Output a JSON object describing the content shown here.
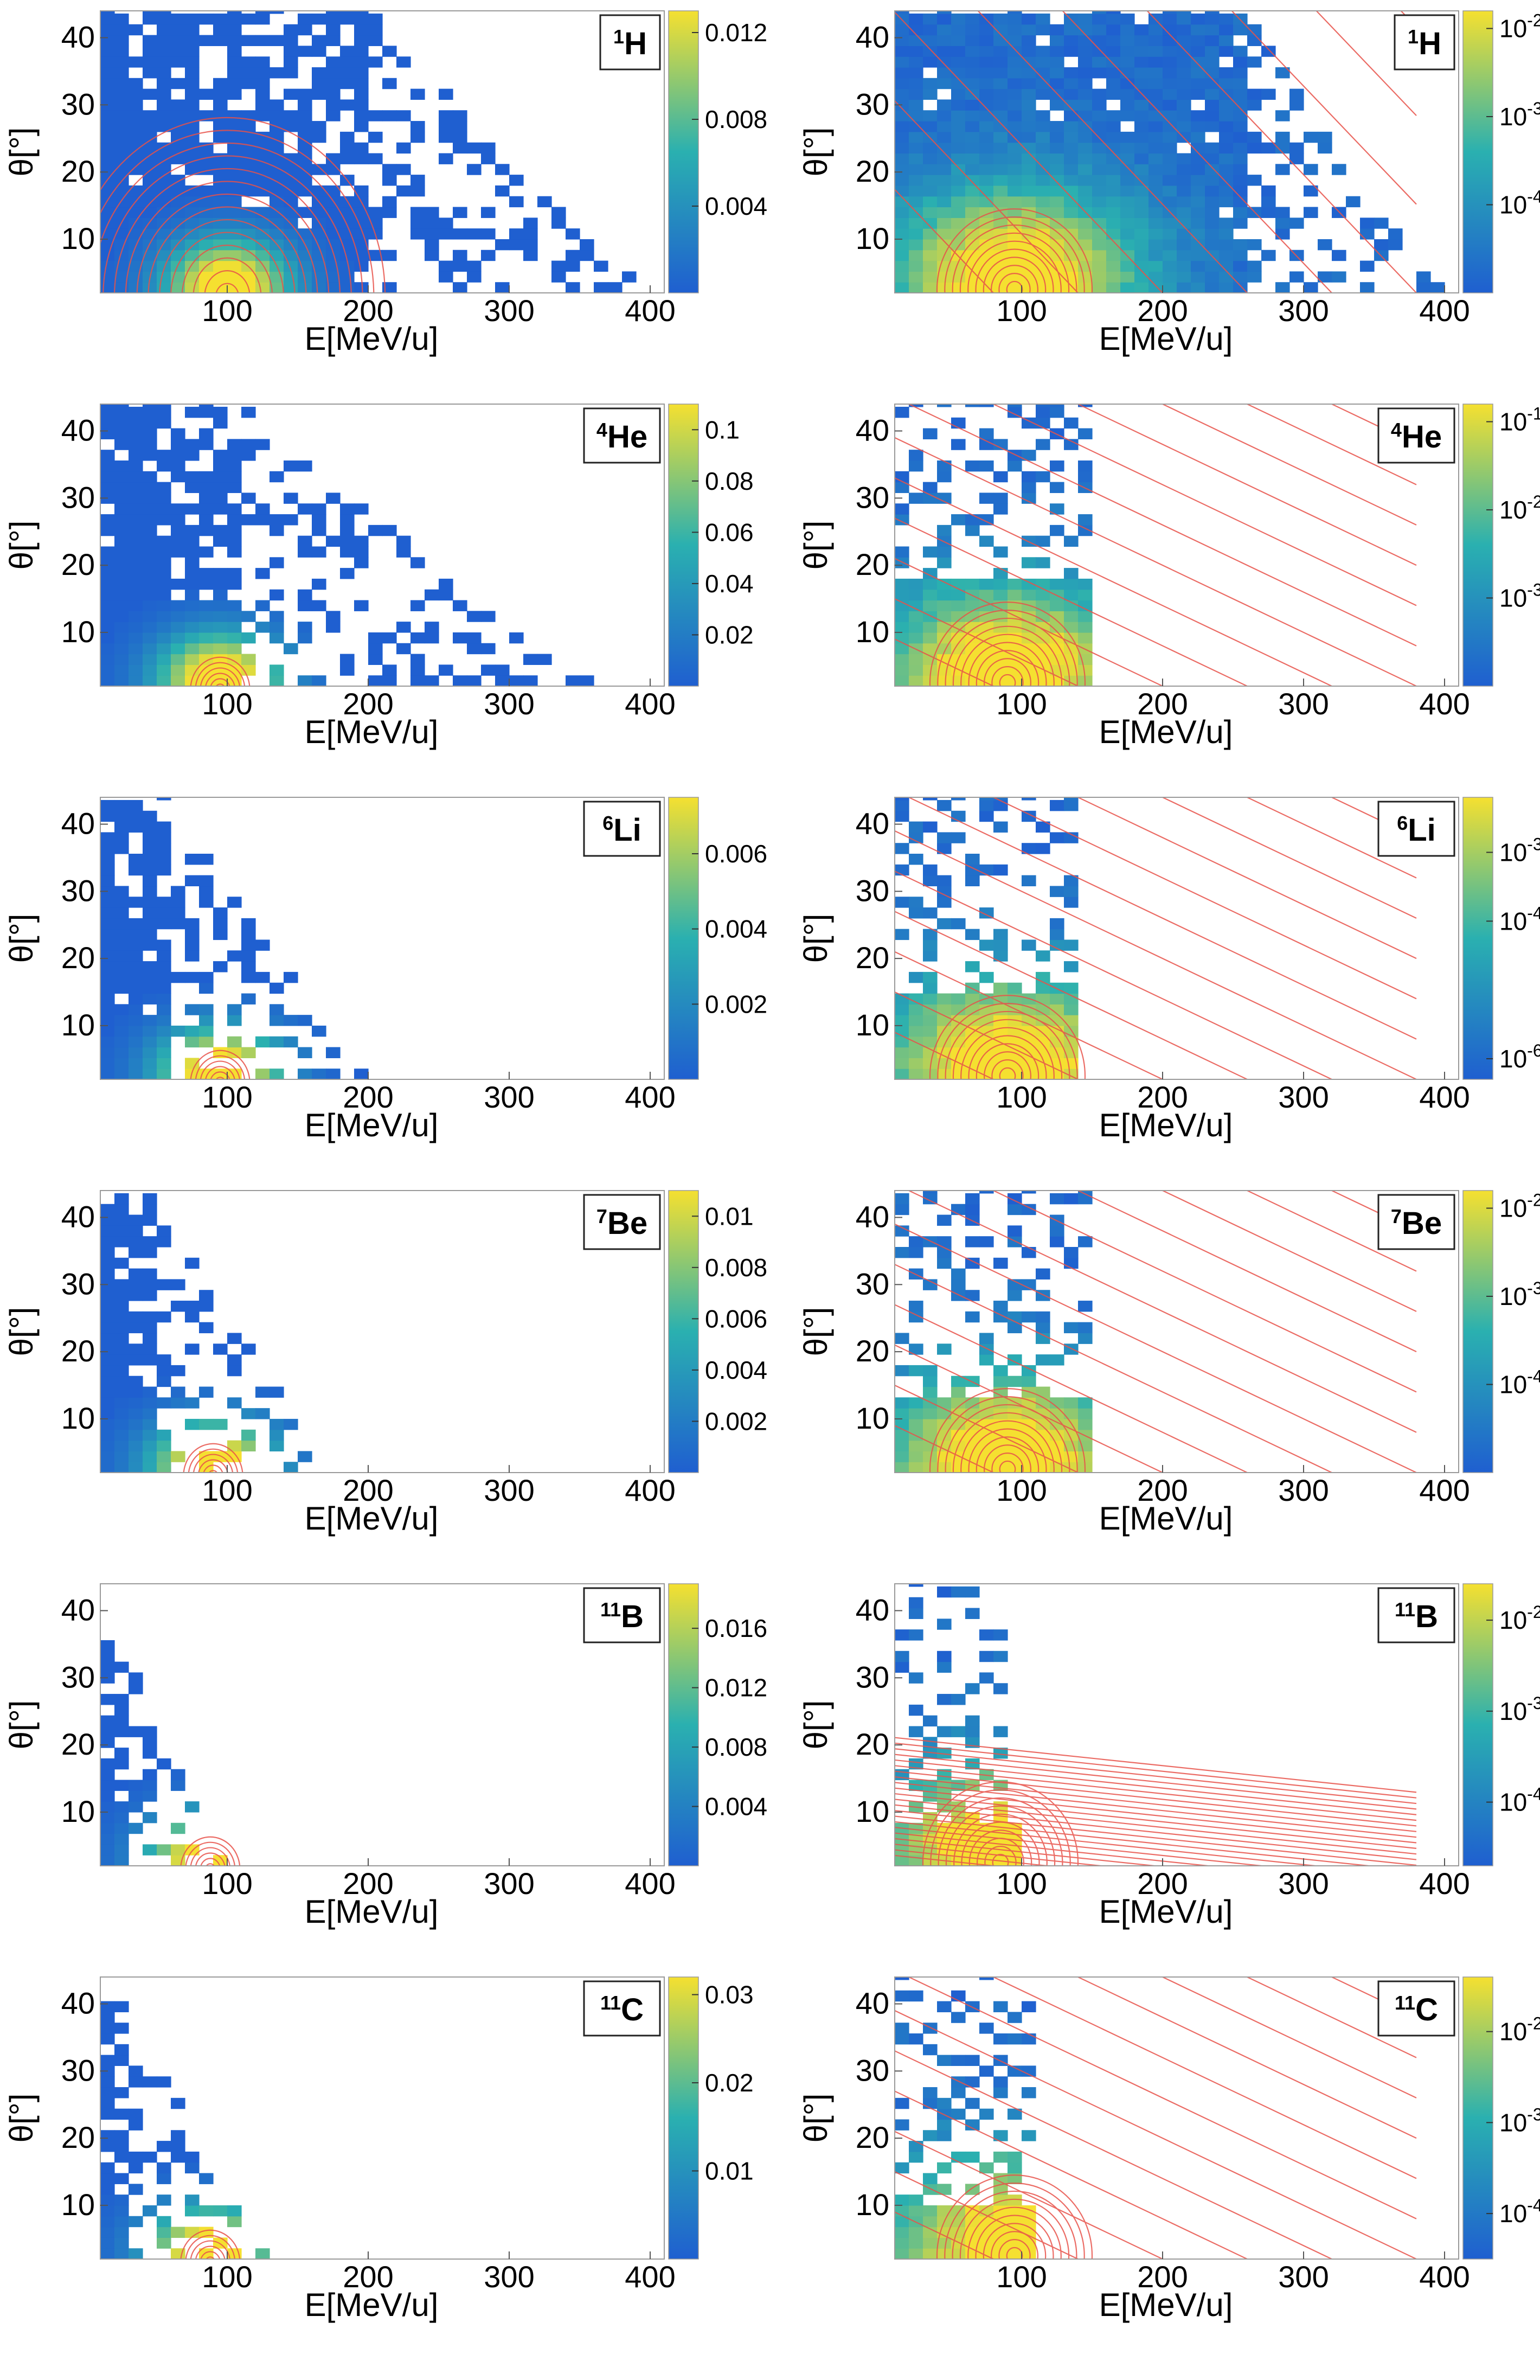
{
  "colors": {
    "cell_low": "#1f5fd0",
    "cell_mid": "#2ab0b0",
    "cell_high": "#f5e030",
    "contour": "#e8524a",
    "frame": "#9a9a9a"
  },
  "chart_data": [
    {
      "type": "heatmap",
      "id": "h1-linear",
      "scale": "linear",
      "isotope": {
        "mass": "1",
        "symbol": "H"
      },
      "xlabel": "E[MeV/u]",
      "ylabel": "θ[°]",
      "xlim": [
        10,
        410
      ],
      "ylim": [
        2,
        44
      ],
      "x_ticks": [
        "100",
        "200",
        "300",
        "400"
      ],
      "x_tick_values": [
        100,
        200,
        300,
        400
      ],
      "y_ticks": [
        "10",
        "20",
        "30",
        "40"
      ],
      "y_tick_values": [
        10,
        20,
        30,
        40
      ],
      "colorbar": {
        "ticks": [
          "0.004",
          "0.008",
          "0.012"
        ],
        "tick_values": [
          0.004,
          0.008,
          0.012
        ],
        "max": 0.013
      },
      "peak": {
        "E": 100,
        "theta": 3
      },
      "filled_region": {
        "E_max": 200,
        "theta_max": 44,
        "sparse_to_E": 400
      },
      "contour_style": "rings"
    },
    {
      "type": "heatmap",
      "id": "h1-log",
      "scale": "log",
      "isotope": {
        "mass": "1",
        "symbol": "H"
      },
      "xlabel": "E[MeV/u]",
      "ylabel": "θ[°]",
      "xlim": [
        10,
        410
      ],
      "ylim": [
        2,
        44
      ],
      "x_ticks": [
        "100",
        "200",
        "300",
        "400"
      ],
      "x_tick_values": [
        100,
        200,
        300,
        400
      ],
      "y_ticks": [
        "10",
        "20",
        "30",
        "40"
      ],
      "y_tick_values": [
        10,
        20,
        30,
        40
      ],
      "colorbar": {
        "ticks": [
          {
            "base": "10",
            "exp": "-2"
          },
          {
            "base": "10",
            "exp": "-3"
          },
          {
            "base": "10",
            "exp": "-4"
          }
        ],
        "tick_values": [
          -2,
          -3,
          -4
        ],
        "log_range": [
          -5,
          -1.8
        ]
      },
      "peak": {
        "E": 95,
        "theta": 4
      },
      "filled_region": {
        "E_max": 260,
        "theta_max": 44,
        "sparse_to_E": 400
      },
      "contour_style": "rings+diagonals"
    },
    {
      "type": "heatmap",
      "id": "he4-linear",
      "scale": "linear",
      "isotope": {
        "mass": "4",
        "symbol": "He"
      },
      "xlabel": "E[MeV/u]",
      "ylabel": "θ[°]",
      "xlim": [
        10,
        410
      ],
      "ylim": [
        2,
        44
      ],
      "x_ticks": [
        "100",
        "200",
        "300",
        "400"
      ],
      "x_tick_values": [
        100,
        200,
        300,
        400
      ],
      "y_ticks": [
        "10",
        "20",
        "30",
        "40"
      ],
      "y_tick_values": [
        10,
        20,
        30,
        40
      ],
      "colorbar": {
        "ticks": [
          "0.02",
          "0.04",
          "0.06",
          "0.08",
          "0.1"
        ],
        "tick_values": [
          0.02,
          0.04,
          0.06,
          0.08,
          0.1
        ],
        "max": 0.11
      },
      "peak": {
        "E": 95,
        "theta": 3
      },
      "filled_region": {
        "E_max": 110,
        "theta_max": 44,
        "sparse_to_E": 360
      },
      "contour_style": "rings-small"
    },
    {
      "type": "heatmap",
      "id": "he4-log",
      "scale": "log",
      "isotope": {
        "mass": "4",
        "symbol": "He"
      },
      "xlabel": "E[MeV/u]",
      "ylabel": "θ[°]",
      "xlim": [
        10,
        410
      ],
      "ylim": [
        2,
        44
      ],
      "x_ticks": [
        "100",
        "200",
        "300",
        "400"
      ],
      "x_tick_values": [
        100,
        200,
        300,
        400
      ],
      "y_ticks": [
        "10",
        "20",
        "30",
        "40"
      ],
      "y_tick_values": [
        10,
        20,
        30,
        40
      ],
      "colorbar": {
        "ticks": [
          {
            "base": "10",
            "exp": "-1"
          },
          {
            "base": "10",
            "exp": "-2"
          },
          {
            "base": "10",
            "exp": "-3"
          }
        ],
        "tick_values": [
          -1,
          -2,
          -3
        ],
        "log_range": [
          -4,
          -0.8
        ]
      },
      "peak": {
        "E": 90,
        "theta": 4
      },
      "filled_region": {
        "E_max": 150,
        "theta_max": 18,
        "sparse_to_E": 150
      },
      "contour_style": "rings+diagonals"
    },
    {
      "type": "heatmap",
      "id": "li6-linear",
      "scale": "linear",
      "isotope": {
        "mass": "6",
        "symbol": "Li"
      },
      "xlabel": "E[MeV/u]",
      "ylabel": "θ[°]",
      "xlim": [
        10,
        410
      ],
      "ylim": [
        2,
        44
      ],
      "x_ticks": [
        "100",
        "200",
        "300",
        "400"
      ],
      "x_tick_values": [
        100,
        200,
        300,
        400
      ],
      "y_ticks": [
        "10",
        "20",
        "30",
        "40"
      ],
      "y_tick_values": [
        10,
        20,
        30,
        40
      ],
      "colorbar": {
        "ticks": [
          "0.002",
          "0.004",
          "0.006"
        ],
        "tick_values": [
          0.002,
          0.004,
          0.006
        ],
        "max": 0.0075
      },
      "peak": {
        "E": 95,
        "theta": 3
      },
      "filled_region": {
        "E_max": 60,
        "theta_max": 44,
        "sparse_to_E": 200
      },
      "contour_style": "rings-small"
    },
    {
      "type": "heatmap",
      "id": "li6-log",
      "scale": "log",
      "isotope": {
        "mass": "6",
        "symbol": "Li"
      },
      "xlabel": "E[MeV/u]",
      "ylabel": "θ[°]",
      "xlim": [
        10,
        410
      ],
      "ylim": [
        2,
        44
      ],
      "x_ticks": [
        "100",
        "200",
        "300",
        "400"
      ],
      "x_tick_values": [
        100,
        200,
        300,
        400
      ],
      "y_ticks": [
        "10",
        "20",
        "30",
        "40"
      ],
      "y_tick_values": [
        10,
        20,
        30,
        40
      ],
      "colorbar": {
        "ticks": [
          {
            "base": "10",
            "exp": "-3"
          },
          {
            "base": "10",
            "exp": "-4"
          },
          {
            "base": "10",
            "exp": "-6"
          }
        ],
        "tick_values": [
          -3,
          -4,
          -6
        ],
        "log_range": [
          -6.3,
          -2.2
        ]
      },
      "peak": {
        "E": 90,
        "theta": 4
      },
      "filled_region": {
        "E_max": 140,
        "theta_max": 14,
        "sparse_to_E": 140
      },
      "contour_style": "rings+diagonals"
    },
    {
      "type": "heatmap",
      "id": "be7-linear",
      "scale": "linear",
      "isotope": {
        "mass": "7",
        "symbol": "Be"
      },
      "xlabel": "E[MeV/u]",
      "ylabel": "θ[°]",
      "xlim": [
        10,
        410
      ],
      "ylim": [
        2,
        44
      ],
      "x_ticks": [
        "100",
        "200",
        "300",
        "400"
      ],
      "x_tick_values": [
        100,
        200,
        300,
        400
      ],
      "y_ticks": [
        "10",
        "20",
        "30",
        "40"
      ],
      "y_tick_values": [
        10,
        20,
        30,
        40
      ],
      "colorbar": {
        "ticks": [
          "0.002",
          "0.004",
          "0.006",
          "0.008",
          "0.01"
        ],
        "tick_values": [
          0.002,
          0.004,
          0.006,
          0.008,
          0.01
        ],
        "max": 0.011
      },
      "peak": {
        "E": 90,
        "theta": 3
      },
      "filled_region": {
        "E_max": 50,
        "theta_max": 44,
        "sparse_to_E": 175
      },
      "contour_style": "rings-small"
    },
    {
      "type": "heatmap",
      "id": "be7-log",
      "scale": "log",
      "isotope": {
        "mass": "7",
        "symbol": "Be"
      },
      "xlabel": "E[MeV/u]",
      "ylabel": "θ[°]",
      "xlim": [
        10,
        410
      ],
      "ylim": [
        2,
        44
      ],
      "x_ticks": [
        "100",
        "200",
        "300",
        "400"
      ],
      "x_tick_values": [
        100,
        200,
        300,
        400
      ],
      "y_ticks": [
        "10",
        "20",
        "30",
        "40"
      ],
      "y_tick_values": [
        10,
        20,
        30,
        40
      ],
      "colorbar": {
        "ticks": [
          {
            "base": "10",
            "exp": "-2"
          },
          {
            "base": "10",
            "exp": "-3"
          },
          {
            "base": "10",
            "exp": "-4"
          }
        ],
        "tick_values": [
          -2,
          -3,
          -4
        ],
        "log_range": [
          -5,
          -1.8
        ]
      },
      "peak": {
        "E": 90,
        "theta": 4
      },
      "filled_region": {
        "E_max": 150,
        "theta_max": 13,
        "sparse_to_E": 150
      },
      "contour_style": "rings+diagonals"
    },
    {
      "type": "heatmap",
      "id": "b11-linear",
      "scale": "linear",
      "isotope": {
        "mass": "11",
        "symbol": "B"
      },
      "xlabel": "E[MeV/u]",
      "ylabel": "θ[°]",
      "xlim": [
        10,
        410
      ],
      "ylim": [
        2,
        44
      ],
      "x_ticks": [
        "100",
        "200",
        "300",
        "400"
      ],
      "x_tick_values": [
        100,
        200,
        300,
        400
      ],
      "y_ticks": [
        "10",
        "20",
        "30",
        "40"
      ],
      "y_tick_values": [
        10,
        20,
        30,
        40
      ],
      "colorbar": {
        "ticks": [
          "0.004",
          "0.008",
          "0.012",
          "0.016"
        ],
        "tick_values": [
          0.004,
          0.008,
          0.012,
          0.016
        ],
        "max": 0.019
      },
      "peak": {
        "E": 88,
        "theta": 3
      },
      "filled_region": {
        "E_max": 30,
        "theta_max": 34,
        "sparse_to_E": 100
      },
      "contour_style": "rings-small"
    },
    {
      "type": "heatmap",
      "id": "b11-log",
      "scale": "log",
      "isotope": {
        "mass": "11",
        "symbol": "B"
      },
      "xlabel": "E[MeV/u]",
      "ylabel": "θ[°]",
      "xlim": [
        10,
        410
      ],
      "ylim": [
        2,
        44
      ],
      "x_ticks": [
        "100",
        "200",
        "300",
        "400"
      ],
      "x_tick_values": [
        100,
        200,
        300,
        400
      ],
      "y_ticks": [
        "10",
        "20",
        "30",
        "40"
      ],
      "y_tick_values": [
        10,
        20,
        30,
        40
      ],
      "colorbar": {
        "ticks": [
          {
            "base": "10",
            "exp": "-2"
          },
          {
            "base": "10",
            "exp": "-3"
          },
          {
            "base": "10",
            "exp": "-4"
          }
        ],
        "tick_values": [
          -2,
          -3,
          -4
        ],
        "log_range": [
          -4.7,
          -1.6
        ]
      },
      "peak": {
        "E": 85,
        "theta": 4
      },
      "filled_region": {
        "E_max": 95,
        "theta_max": 8,
        "sparse_to_E": 95
      },
      "contour_style": "rings+diagonals-dense"
    },
    {
      "type": "heatmap",
      "id": "c11-linear",
      "scale": "linear",
      "isotope": {
        "mass": "11",
        "symbol": "C"
      },
      "xlabel": "E[MeV/u]",
      "ylabel": "θ[°]",
      "xlim": [
        10,
        410
      ],
      "ylim": [
        2,
        44
      ],
      "x_ticks": [
        "100",
        "200",
        "300",
        "400"
      ],
      "x_tick_values": [
        100,
        200,
        300,
        400
      ],
      "y_ticks": [
        "10",
        "20",
        "30",
        "40"
      ],
      "y_tick_values": [
        10,
        20,
        30,
        40
      ],
      "colorbar": {
        "ticks": [
          "0.01",
          "0.02",
          "0.03"
        ],
        "tick_values": [
          0.01,
          0.02,
          0.03
        ],
        "max": 0.032
      },
      "peak": {
        "E": 88,
        "theta": 3
      },
      "filled_region": {
        "E_max": 30,
        "theta_max": 40,
        "sparse_to_E": 130
      },
      "contour_style": "rings-small"
    },
    {
      "type": "heatmap",
      "id": "c11-log",
      "scale": "log",
      "isotope": {
        "mass": "11",
        "symbol": "C"
      },
      "xlabel": "E[MeV/u]",
      "ylabel": "θ[°]",
      "xlim": [
        10,
        410
      ],
      "ylim": [
        2,
        44
      ],
      "x_ticks": [
        "100",
        "200",
        "300",
        "400"
      ],
      "x_tick_values": [
        100,
        200,
        300,
        400
      ],
      "y_ticks": [
        "10",
        "20",
        "30",
        "40"
      ],
      "y_tick_values": [
        10,
        20,
        30,
        40
      ],
      "colorbar": {
        "ticks": [
          {
            "base": "10",
            "exp": "-2"
          },
          {
            "base": "10",
            "exp": "-3"
          },
          {
            "base": "10",
            "exp": "-4"
          }
        ],
        "tick_values": [
          -2,
          -3,
          -4
        ],
        "log_range": [
          -4.5,
          -1.4
        ]
      },
      "peak": {
        "E": 95,
        "theta": 4
      },
      "filled_region": {
        "E_max": 110,
        "theta_max": 10,
        "sparse_to_E": 110
      },
      "contour_style": "rings+diagonals"
    }
  ]
}
